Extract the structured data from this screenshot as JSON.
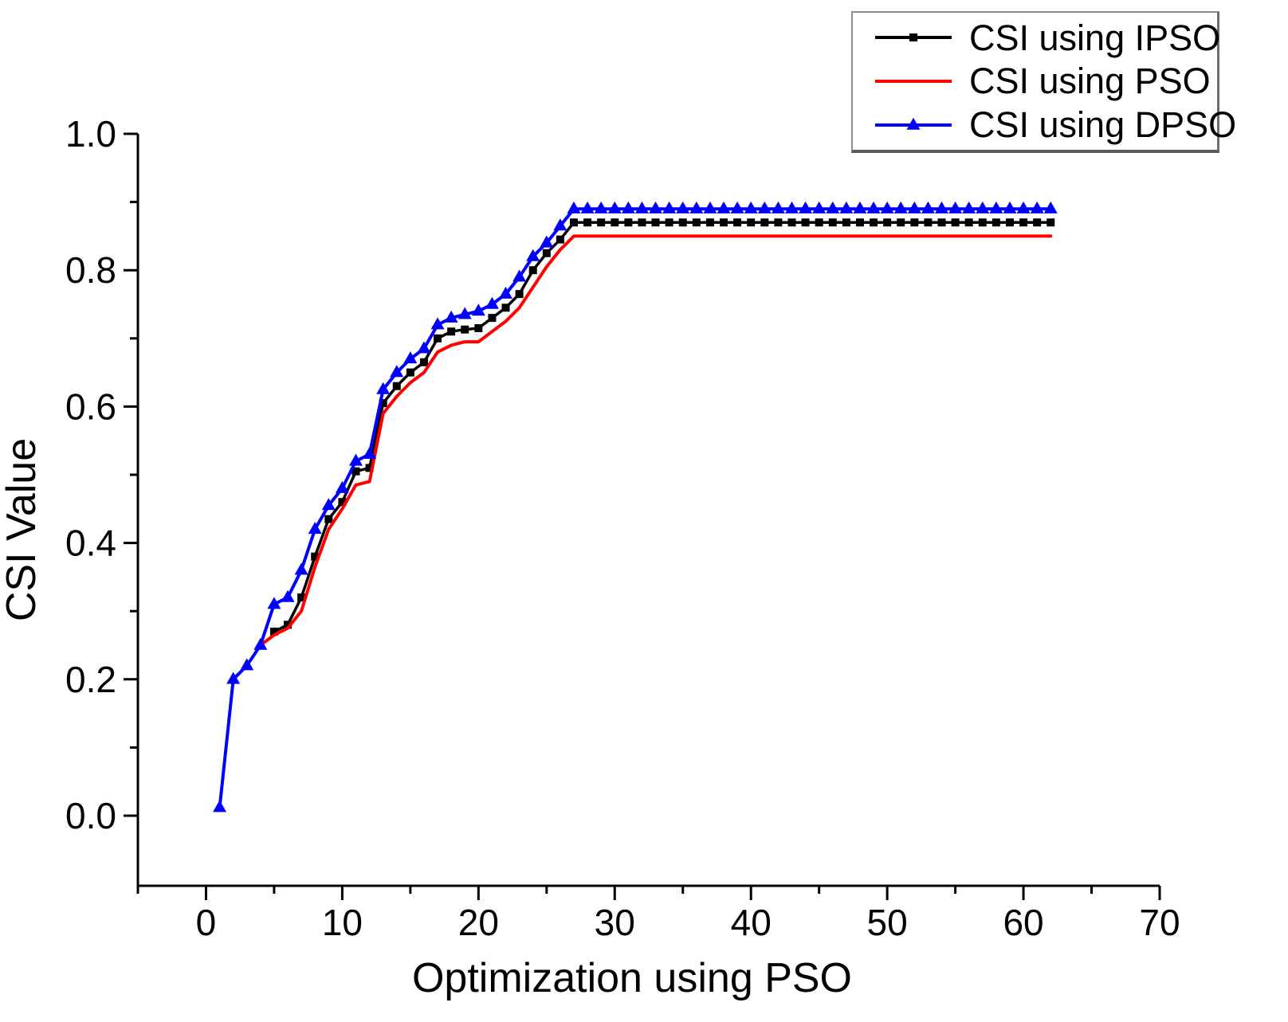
{
  "chart_data": {
    "type": "line",
    "title": "",
    "xlabel": "Optimization using PSO",
    "ylabel": "CSI Value",
    "xlim": [
      -5,
      70
    ],
    "ylim": [
      0.0,
      1.0
    ],
    "grid": false,
    "legend_position": "top-right",
    "x_major_ticks": {
      "values": [
        0,
        10,
        20,
        30,
        40,
        50,
        60,
        70
      ],
      "labels": [
        "0",
        "10",
        "20",
        "30",
        "40",
        "50",
        "60",
        "70"
      ]
    },
    "x_minor_ticks": [
      -5,
      5,
      15,
      25,
      35,
      45,
      55,
      65
    ],
    "y_major_ticks": {
      "values": [
        0.0,
        0.2,
        0.4,
        0.6,
        0.8,
        1.0
      ],
      "labels": [
        "0.0",
        "0.2",
        "0.4",
        "0.6",
        "0.8",
        "1.0"
      ]
    },
    "y_minor_ticks": [
      0.1,
      0.3,
      0.5,
      0.7,
      0.9
    ],
    "series": [
      {
        "name": "CSI using IPSO",
        "color": "#000000",
        "marker": "square",
        "x_start": 5,
        "x_end": 62,
        "values": [
          0.27,
          0.28,
          0.32,
          0.38,
          0.435,
          0.46,
          0.505,
          0.51,
          0.605,
          0.63,
          0.65,
          0.665,
          0.7,
          0.71,
          0.713,
          0.715,
          0.73,
          0.745,
          0.765,
          0.8,
          0.825,
          0.845,
          0.87,
          0.87,
          0.87,
          0.87,
          0.87,
          0.87,
          0.87,
          0.87,
          0.87,
          0.87,
          0.87,
          0.87,
          0.87,
          0.87,
          0.87,
          0.87,
          0.87,
          0.87,
          0.87,
          0.87,
          0.87,
          0.87,
          0.87,
          0.87,
          0.87,
          0.87,
          0.87,
          0.87,
          0.87,
          0.87,
          0.87,
          0.87,
          0.87,
          0.87,
          0.87,
          0.87
        ]
      },
      {
        "name": "CSI using PSO",
        "color": "#ff0000",
        "marker": "none",
        "x_start": 4,
        "x_end": 62,
        "values": [
          0.25,
          0.265,
          0.275,
          0.3,
          0.365,
          0.42,
          0.45,
          0.485,
          0.49,
          0.59,
          0.615,
          0.635,
          0.65,
          0.68,
          0.69,
          0.695,
          0.695,
          0.71,
          0.725,
          0.745,
          0.775,
          0.805,
          0.83,
          0.85,
          0.85,
          0.85,
          0.85,
          0.85,
          0.85,
          0.85,
          0.85,
          0.85,
          0.85,
          0.85,
          0.85,
          0.85,
          0.85,
          0.85,
          0.85,
          0.85,
          0.85,
          0.85,
          0.85,
          0.85,
          0.85,
          0.85,
          0.85,
          0.85,
          0.85,
          0.85,
          0.85,
          0.85,
          0.85,
          0.85,
          0.85,
          0.85,
          0.85,
          0.85,
          0.85
        ]
      },
      {
        "name": "CSI using DPSO",
        "color": "#0000ff",
        "marker": "triangle",
        "x_start": 1,
        "x_end": 62,
        "values": [
          0.012,
          0.2,
          0.22,
          0.25,
          0.31,
          0.32,
          0.36,
          0.42,
          0.455,
          0.48,
          0.52,
          0.53,
          0.625,
          0.65,
          0.67,
          0.685,
          0.72,
          0.73,
          0.735,
          0.74,
          0.75,
          0.765,
          0.79,
          0.82,
          0.84,
          0.865,
          0.89,
          0.89,
          0.89,
          0.89,
          0.89,
          0.89,
          0.89,
          0.89,
          0.89,
          0.89,
          0.89,
          0.89,
          0.89,
          0.89,
          0.89,
          0.89,
          0.89,
          0.89,
          0.89,
          0.89,
          0.89,
          0.89,
          0.89,
          0.89,
          0.89,
          0.89,
          0.89,
          0.89,
          0.89,
          0.89,
          0.89,
          0.89,
          0.89,
          0.89,
          0.89,
          0.89
        ]
      }
    ]
  }
}
